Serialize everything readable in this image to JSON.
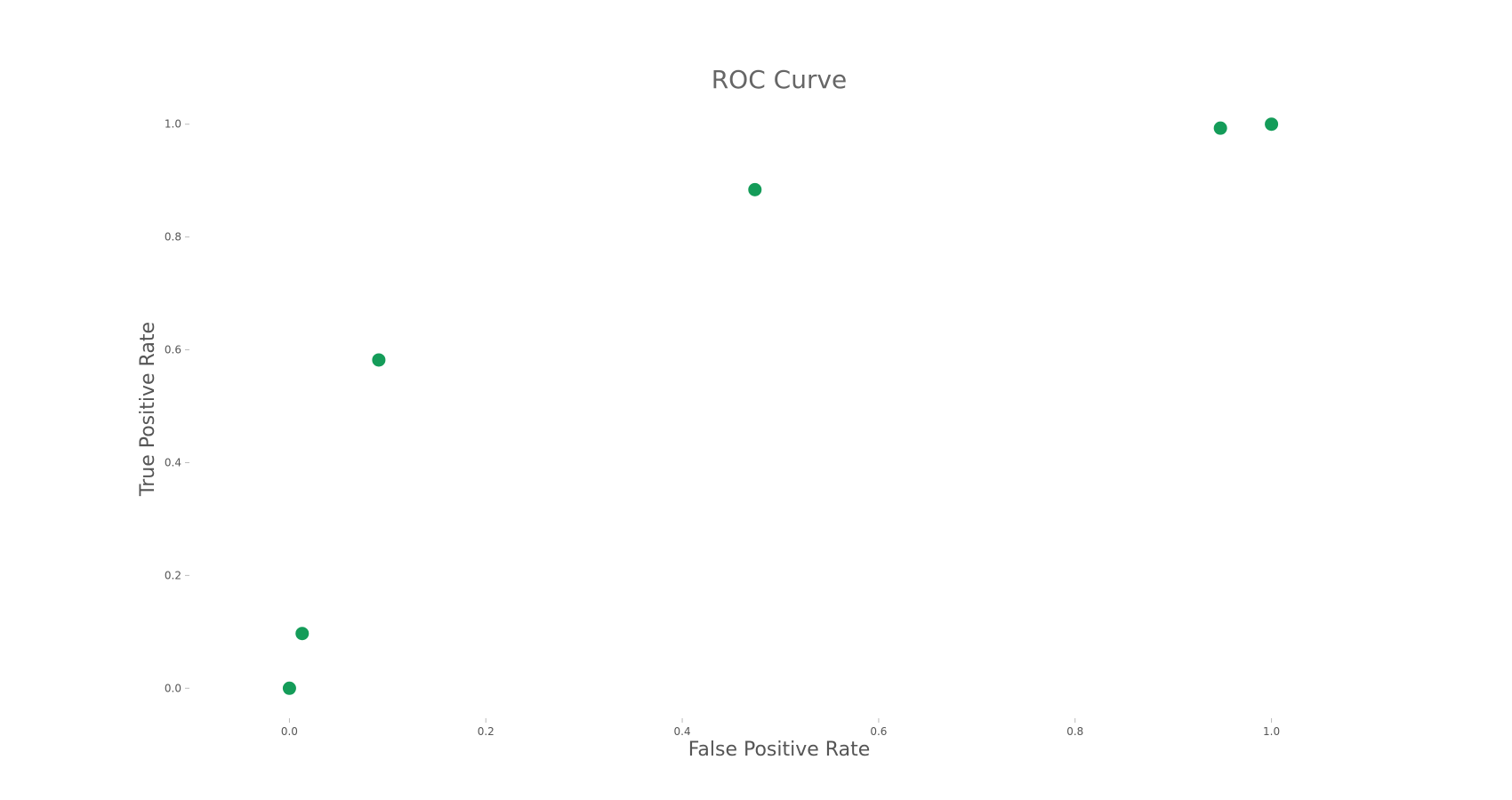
{
  "chart_data": {
    "type": "scatter",
    "title": "ROC Curve",
    "xlabel": "False Positive Rate",
    "ylabel": "True Positive Rate",
    "xlim": [
      -0.1,
      1.1
    ],
    "ylim": [
      -0.05,
      1.05
    ],
    "xticks": [
      "0.0",
      "0.2",
      "0.4",
      "0.6",
      "0.8",
      "1.0"
    ],
    "yticks": [
      "0.0",
      "0.2",
      "0.4",
      "0.6",
      "0.8",
      "1.0"
    ],
    "grid": false,
    "legend": "none",
    "series": [
      {
        "color": "#149c59",
        "points": [
          {
            "x": 0.0,
            "y": 0.0
          },
          {
            "x": 0.013,
            "y": 0.097
          },
          {
            "x": 0.091,
            "y": 0.582
          },
          {
            "x": 0.474,
            "y": 0.884
          },
          {
            "x": 0.948,
            "y": 0.993
          },
          {
            "x": 1.0,
            "y": 1.0
          }
        ]
      }
    ]
  }
}
